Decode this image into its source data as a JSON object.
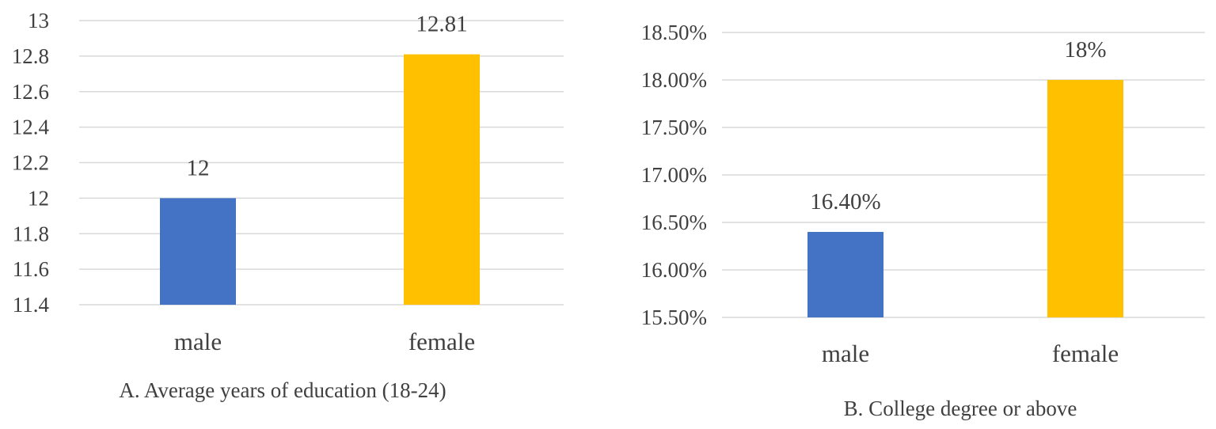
{
  "chart_data": [
    {
      "type": "bar",
      "title": "A. Average years of education (18-24)",
      "categories": [
        "male",
        "female"
      ],
      "values": [
        12,
        12.81
      ],
      "data_labels": [
        "12",
        "12.81"
      ],
      "ylim": [
        11.4,
        13
      ],
      "y_ticks": [
        11.4,
        11.6,
        11.8,
        12,
        12.2,
        12.4,
        12.6,
        12.8,
        13
      ],
      "y_tick_labels": [
        "11.4",
        "11.6",
        "11.8",
        "12",
        "12.2",
        "12.4",
        "12.6",
        "12.8",
        "13"
      ],
      "colors": [
        "#4472c4",
        "#ffc000"
      ],
      "grid": true
    },
    {
      "type": "bar",
      "title": "B. College degree or above",
      "categories": [
        "male",
        "female"
      ],
      "values": [
        16.4,
        18
      ],
      "data_labels": [
        "16.40%",
        "18%"
      ],
      "ylim": [
        15.5,
        18.5
      ],
      "y_ticks": [
        15.5,
        16,
        16.5,
        17,
        17.5,
        18,
        18.5
      ],
      "y_tick_labels": [
        "15.50%",
        "16.00%",
        "16.50%",
        "17.00%",
        "17.50%",
        "18.00%",
        "18.50%"
      ],
      "colors": [
        "#4472c4",
        "#ffc000"
      ],
      "grid": true
    }
  ]
}
